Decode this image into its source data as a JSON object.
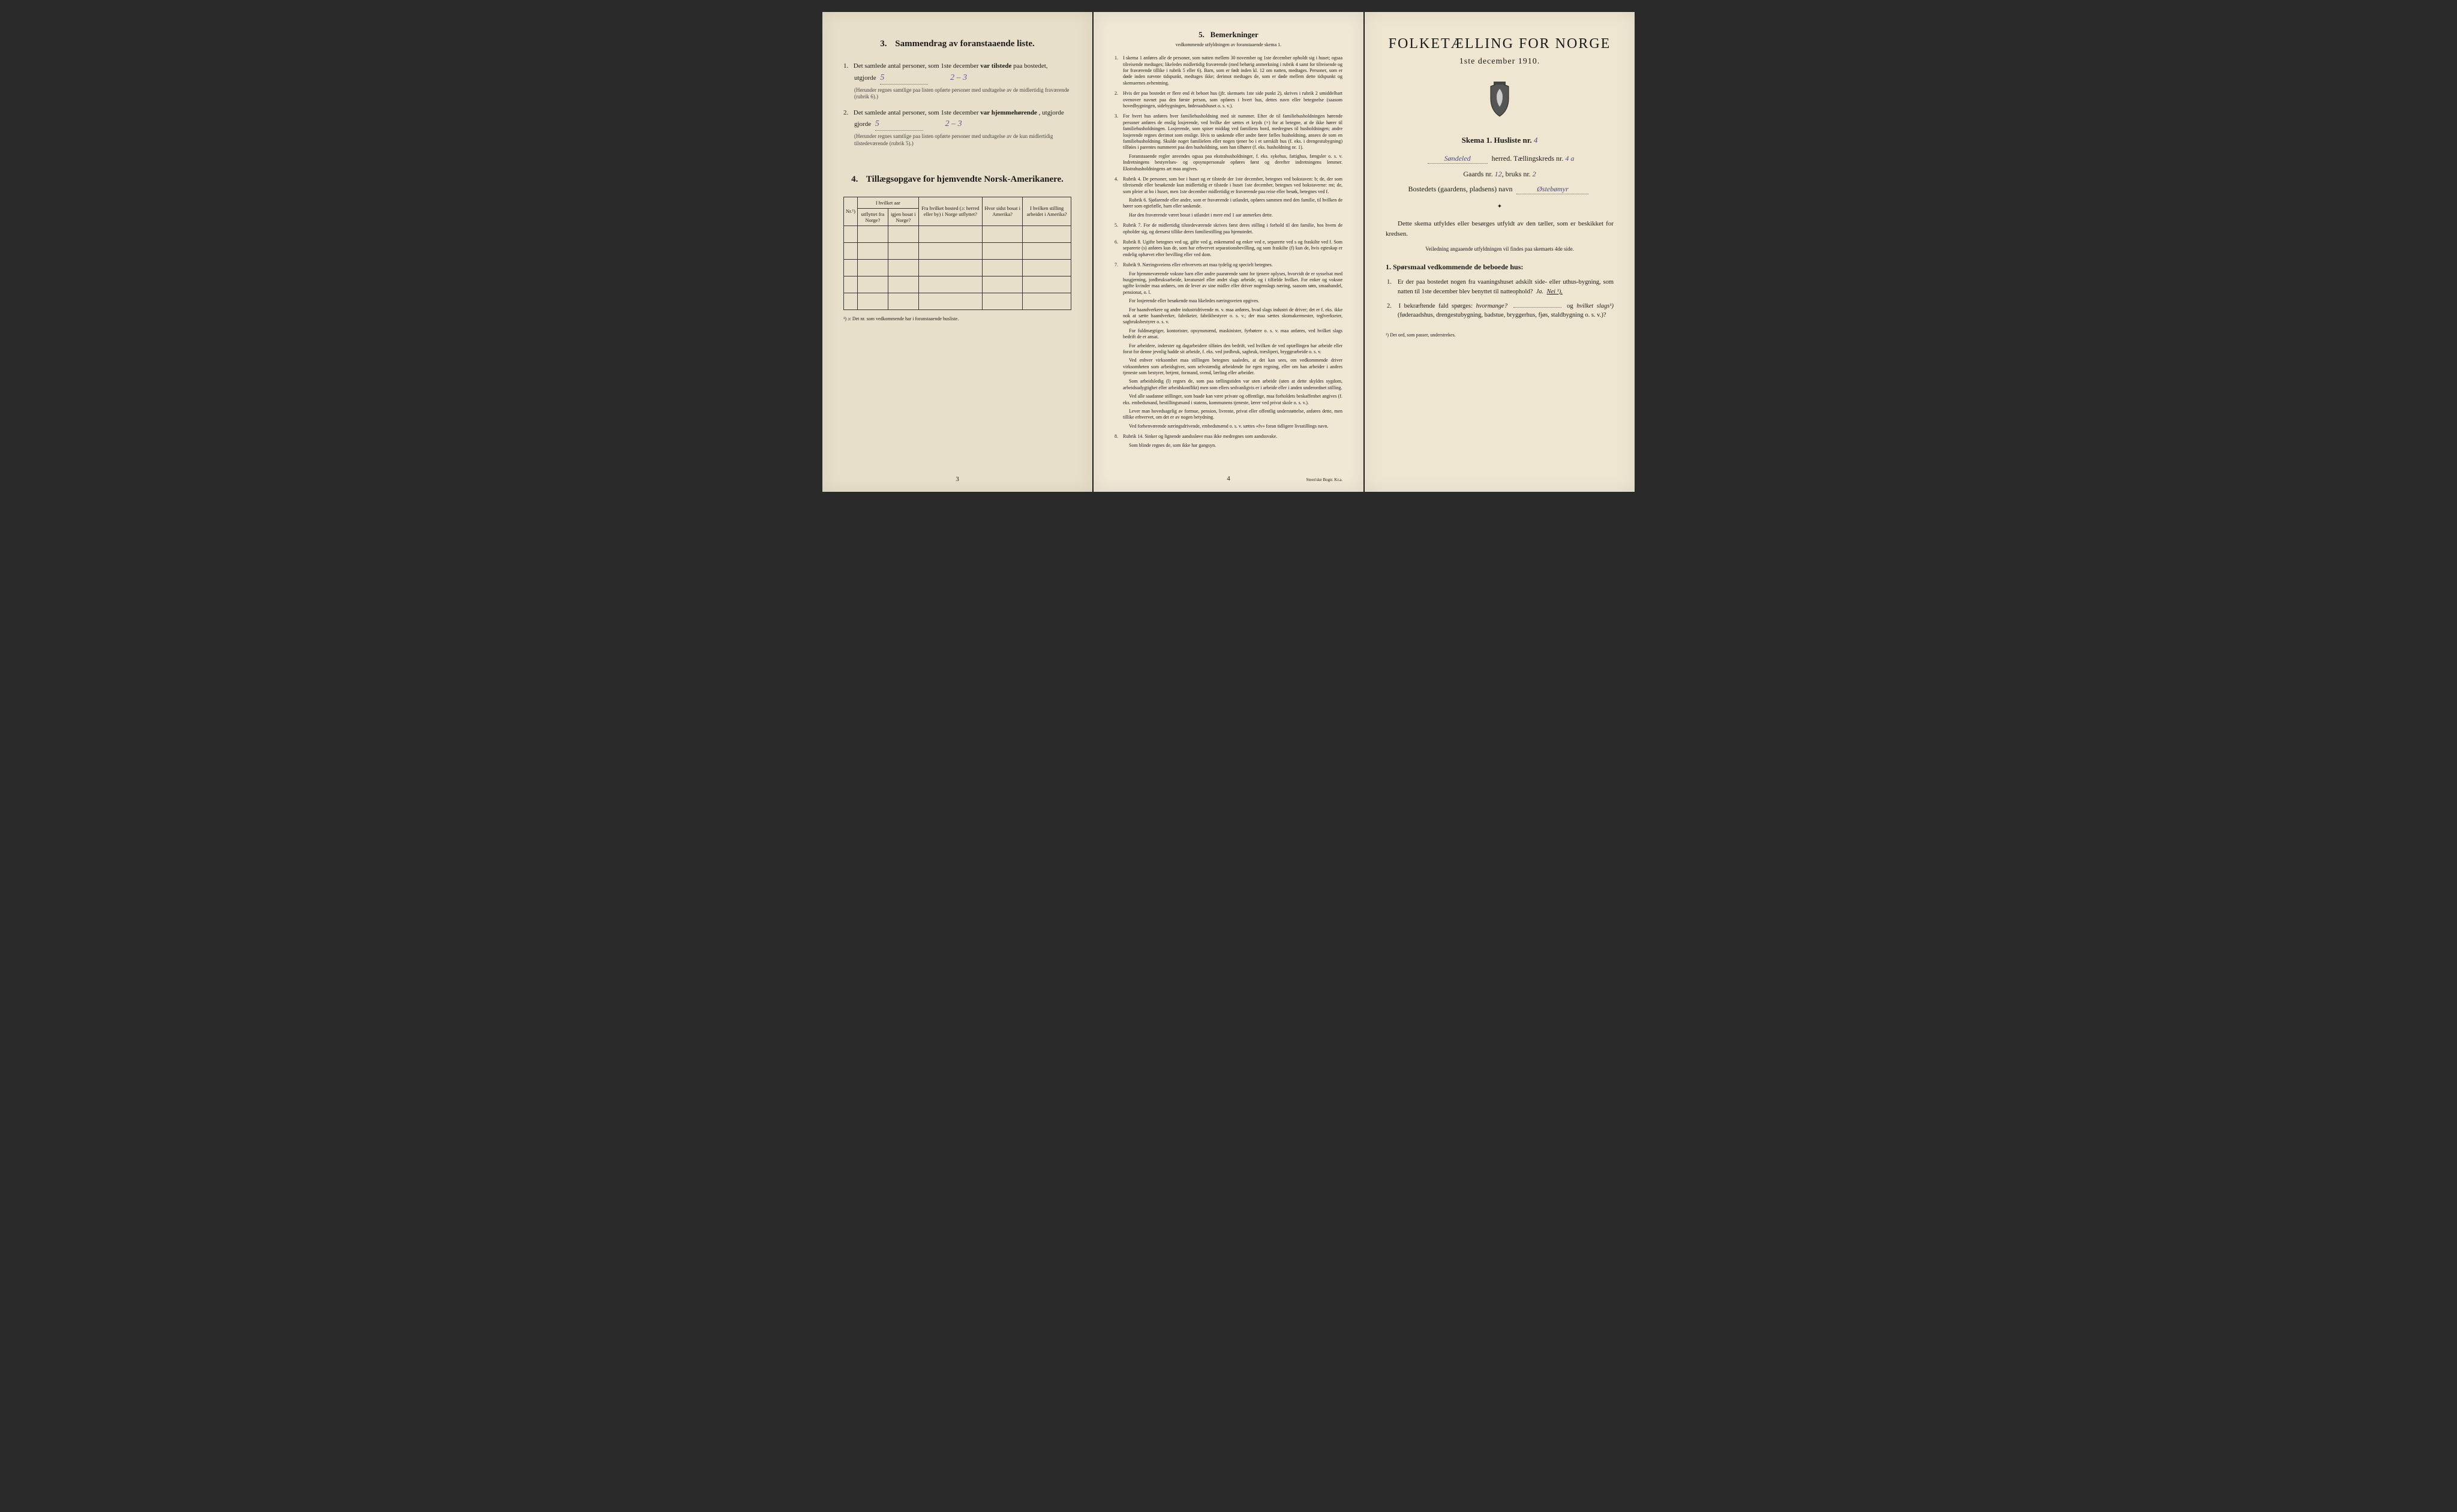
{
  "colors": {
    "page_bg": "#ede4d0",
    "ink": "#1a1a1a",
    "handwriting": "#5a5a9a",
    "frame": "#2a2a2a"
  },
  "typography": {
    "body_font": "Georgia, Times New Roman, serif",
    "handwriting_font": "cursive",
    "title_size_pt": 24,
    "section_title_pt": 15,
    "body_pt": 11,
    "smallprint_pt": 8
  },
  "page1": {
    "section3": {
      "number": "3.",
      "title": "Sammendrag av foranstaaende liste.",
      "q1": {
        "num": "1.",
        "text_a": "Det samlede antal personer, som 1ste december ",
        "bold_a": "var tilstede",
        "text_b": " paa bostedet,",
        "utgjorde_label": "utgjorde",
        "value_main": "5",
        "value_split": "2 – 3",
        "note": "(Herunder regnes samtlige paa listen opførte personer med undtagelse av de midlertidig fraværende (rubrik 6).)"
      },
      "q2": {
        "num": "2.",
        "text_a": "Det samlede antal personer, som 1ste december ",
        "bold_a": "var hjemmehørende",
        "text_b": ", utgjorde",
        "value_main": "5",
        "value_split": "2 – 3",
        "note": "(Herunder regnes samtlige paa listen opførte personer med undtagelse av de kun midlertidig tilstedeværende (rubrik 5).)"
      }
    },
    "section4": {
      "number": "4.",
      "title": "Tillægsopgave for hjemvendte Norsk-Amerikanere.",
      "table": {
        "col0": "Nr.¹)",
        "header_group": "I hvilket aar",
        "col1a": "utflyttet fra Norge?",
        "col1b": "igjen bosat i Norge?",
        "col2": "Fra hvilket bosted (ɔ: herred eller by) i Norge utflyttet?",
        "col3": "Hvor sidst bosat i Amerika?",
        "col4": "I hvilken stilling arbeidet i Amerika?",
        "empty_rows": 5
      },
      "footnote": "¹) ɔ: Det nr. som vedkommende har i foranstaaende husliste."
    },
    "page_number": "3"
  },
  "page2": {
    "section5": {
      "number": "5.",
      "title": "Bemerkninger",
      "subtitle": "vedkommende utfyldningen av foranstaaende skema 1."
    },
    "items": [
      {
        "num": "1.",
        "text": "I skema 1 anføres alle de personer, som natten mellem 30 november og 1ste december opholdt sig i huset; ogsaa tilreisende medtages; likeledes midlertidig fraværende (med behørig anmerkning i rubrik 4 samt for tilreisende og for fraværende tillike i rubrik 5 eller 6). Barn, som er født inden kl. 12 om natten, medtages. Personer, som er døde inden nævnte tidspunkt, medtages ikke; derimot medtages de, som er døde mellem dette tidspunkt og skemaernes avhentning."
      },
      {
        "num": "2.",
        "text": "Hvis der paa bostedet er flere end ét beboet hus (jfr. skemaets 1ste side punkt 2), skrives i rubrik 2 umiddelbart ovenover navnet paa den første person, som opføres i hvert hus, dettes navn eller betegnelse (saasom hovedbygningen, sidebygningen, føderaadshuset o. s. v.)."
      },
      {
        "num": "3.",
        "text": "For hvert hus anføres hver familiehusholdning med sit nummer. Efter de til familiehusholdningen hørende personer anføres de enslig losjerende, ved hvilke der sættes et kryds (×) for at betegne, at de ikke hører til familiehusholdningen. Losjerende, som spiser middag ved familiens bord, medregnes til husholdningen; andre losjerende regnes derimot som enslige. Hvis to søskende eller andre fører fælles husholdning, ansees de som en familiehusholdning. Skulde noget familielem eller nogen tjener bo i et særskilt hus (f. eks. i drengestu­bygning) tilføies i parentes nummeret paa den husholdning, som han tilhører (f. eks. husholdning nr. 1).",
        "subs": [
          "Foranstaaende regler anvendes ogsaa paa ekstrahusholdninger, f. eks. sykehus, fattighus, fængsler o. s. v. Indretningens bestyrelses- og opsynspersonale opføres først og derefter indretningens lemmer. Ekstrahusholdningens art maa angives."
        ]
      },
      {
        "num": "4.",
        "text": "Rubrik 4. De personer, som bor i huset og er tilstede der 1ste december, betegnes ved bokstaven: b; de, der som tilreisende eller besøkende kun midlertidig er tilstede i huset 1ste december, betegnes ved bokstaverne: mt; de, som pleier at bo i huset, men 1ste december midlertidig er fraværende paa reise eller besøk, betegnes ved f.",
        "subs": [
          "Rubrik 6. Sjøfarende eller andre, som er fraværende i utlandet, opføres sammen med den familie, til hvilken de hører som egtefælle, barn eller søskende.",
          "Har den fraværende været bosat i utlandet i mere end 1 aar anmerkes dette."
        ]
      },
      {
        "num": "5.",
        "text": "Rubrik 7. For de midlertidig tilstedeværende skrives først deres stilling i forhold til den familie, hos hvem de opholder sig, og dernæst tillike deres familiestilling paa hjemstedet."
      },
      {
        "num": "6.",
        "text": "Rubrik 8. Ugifte betegnes ved ug, gifte ved g, enkemænd og enker ved e, separerte ved s og fraskilte ved f. Som separerte (s) anføres kun de, som har erhvervet separations­bevilling, og som fraskilte (f) kun de, hvis egteskap er endelig ophævet efter bevilling eller ved dom."
      },
      {
        "num": "7.",
        "text": "Rubrik 9. Næringsveiens eller erhvervets art maa tydelig og specielt betegnes.",
        "subs": [
          "For hjemmeværende voksne barn eller andre paarørende samt for tjenere oplyses, hvorvidt de er sysselsat med husgjerning, jordbruksarbeide, kreaturstel eller andet slags arbeide, og i tilfælde hvilket. For enker og voksne ugifte kvinder maa anføres, om de lever av sine midler eller driver nogenslags næring, saasom søm, smaahandel, pensionat, o. l.",
          "For losjerende eller besøkende maa likeledes næringsveien opgives.",
          "For haandverkere og andre industridrivende m. v. maa anføres, hvad slags industri de driver; det er f. eks. ikke nok at sætte haandverker, fabrikeier, fabrikbestyrer o. s. v.; der maa sættes skomakermester, teglverkseier, sagbruksbestyrer o. s. v.",
          "For fuldmægtiger, kontorister, opsynsmænd, maskinister, fyrbøtere o. s. v. maa anføres, ved hvilket slags bedrift de er ansat.",
          "For arbeidere, inderster og dagarbeidere tilføies den bedrift, ved hvilken de ved optællingen har arbeide eller forut for denne jevnlig hadde sit arbeide, f. eks. ved jordbruk, sagbruk, træsliperi, bryggearbeide o. s. v.",
          "Ved enhver virksomhet maa stillingen betegnes saaledes, at det kan sees, om vedkommende driver virksomheten som arbeidsgiver, som selvstændig arbeidende for egen regning, eller om han arbeider i andres tjeneste som bestyrer, betjent, formand, svend, lærling eller arbeider.",
          "Som arbeidsledig (l) regnes de, som paa tællingstiden var uten arbeide (uten at dette skyldes sygdom, arbeidsudygtighet eller arbeidskonflikt) men som ellers sedvanligvis er i arbeide eller i anden underordnet stilling.",
          "Ved alle saadanne stillinger, som baade kan være private og offentlige, maa forholdets beskaffenhet angives (f. eks. embedsmand, bestillingsmand i statens, kommunens tjeneste, lærer ved privat skole o. s. v.).",
          "Lever man hovedsagelig av formue, pension, livrente, privat eller offentlig understøttelse, anføres dette, men tillike erhvervet, om det er av nogen betydning.",
          "Ved forhenværende næringsdrivende, embedsmænd o. s. v. sættes «fv» foran tidligere livsstillings navn."
        ]
      },
      {
        "num": "8.",
        "text": "Rubrik 14. Sinker og lignende aandssløve maa ikke medregnes som aandssvake.",
        "subs": [
          "Som blinde regnes de, som ikke har gangsyn."
        ]
      }
    ],
    "page_number": "4",
    "printer": "Steen'ske Bogtr. Kr.a."
  },
  "page3": {
    "main_title": "FOLKETÆLLING FOR NORGE",
    "date": "1ste december 1910.",
    "skema_label": "Skema 1.  Husliste nr.",
    "husliste_nr": "4",
    "herred_value": "Søndeled",
    "herred_label": "herred.  Tællingskreds nr.",
    "kreds_nr": "4 a",
    "gaards_label": "Gaards nr.",
    "gaards_nr": "12",
    "bruks_label": "bruks nr.",
    "bruks_nr": "2",
    "bosted_label": "Bostedets (gaardens, pladsens) navn",
    "bosted_navn": "Østebømyr",
    "divider": "✦",
    "instruction": "Dette skema utfyldes eller besørges utfyldt av den tæller, som er beskikket for kredsen.",
    "veiledning": "Veiledning angaaende utfyldningen vil findes paa skemaets 4de side.",
    "sporsmaal_head_num": "1.",
    "sporsmaal_head": "Spørsmaal vedkommende de beboede hus:",
    "q1": {
      "num": "1.",
      "text": "Er der paa bostedet nogen fra vaaningshuset adskilt side- eller uthus-bygning, som natten til 1ste december blev benyttet til natteophold?",
      "ja": "Ja.",
      "nei": "Nei ¹)."
    },
    "q2": {
      "num": "2.",
      "text_a": "I bekræftende fald spørges: ",
      "hvor": "hvormange?",
      "text_b": " og ",
      "hvilket": "hvilket slags¹)",
      "text_c": " (føderaadshus, drengestubygning, badstue, bryggerhus, fjøs, stald­bygning o. s. v.)?"
    },
    "footnote": "¹) Det ord, som passer, understrekes."
  }
}
